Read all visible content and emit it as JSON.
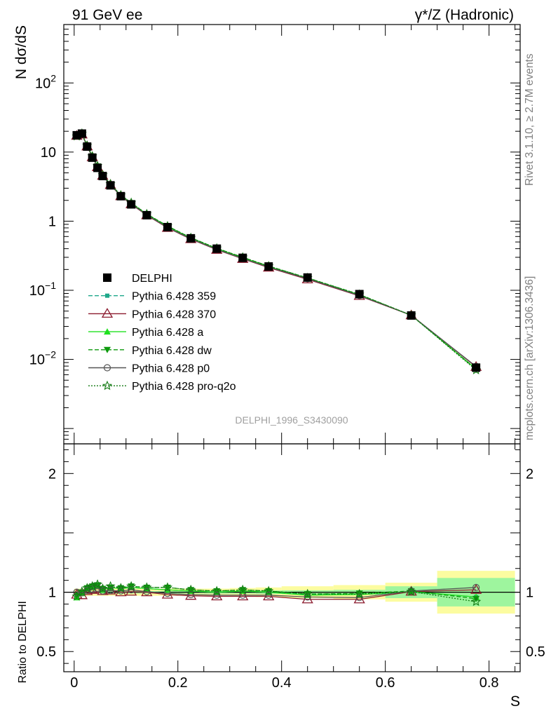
{
  "header": {
    "left_title": "91 GeV ee",
    "right_title": "γ*/Z (Hadronic)"
  },
  "side_text": {
    "rivet": "Rivet 3.1.10, ≥ 2.7M events",
    "mcplots": "mcplots.cern.ch [arXiv:1306.3436]"
  },
  "analysis_label": "DELPHI_1996_S3430090",
  "colors": {
    "data": "#000000",
    "p359": "#1fa88a",
    "p370": "#8b1a2e",
    "pa": "#1fe01f",
    "pdw": "#0d9a0d",
    "pp0": "#555555",
    "pproq2o": "#137a13",
    "band_stat": "#9ef59e",
    "band_syst": "#fcfca0"
  },
  "chart_data": [
    {
      "type": "line",
      "panel": "main",
      "ylabel": "N dσ/dS",
      "yscale": "log",
      "xlim": [
        -0.02,
        0.86
      ],
      "ylim": [
        0.0006,
        700
      ],
      "y_ticks": [
        {
          "value": 0.01,
          "label": "10",
          "exp": "−2"
        },
        {
          "value": 0.1,
          "label": "10",
          "exp": "−1"
        },
        {
          "value": 1,
          "label": "1",
          "exp": ""
        },
        {
          "value": 10,
          "label": "10",
          "exp": ""
        },
        {
          "value": 100,
          "label": "10",
          "exp": "2"
        }
      ],
      "x": [
        0.005,
        0.015,
        0.025,
        0.035,
        0.045,
        0.055,
        0.07,
        0.09,
        0.11,
        0.14,
        0.18,
        0.225,
        0.275,
        0.325,
        0.375,
        0.45,
        0.55,
        0.65,
        0.775
      ],
      "legend_position": "left-center",
      "series": [
        {
          "key": "data",
          "name": "DELPHI",
          "marker": "square",
          "line": "none",
          "values": [
            17.5,
            18.5,
            12.0,
            8.3,
            5.9,
            4.5,
            3.3,
            2.3,
            1.75,
            1.22,
            0.82,
            0.565,
            0.4,
            0.295,
            0.221,
            0.153,
            0.088,
            0.0432,
            0.0076
          ]
        },
        {
          "key": "p359",
          "name": "Pythia 6.428 359",
          "marker": "smallsquare",
          "line": "dashed",
          "values": [
            17.0,
            18.4,
            12.3,
            8.6,
            6.2,
            4.6,
            3.4,
            2.36,
            1.82,
            1.26,
            0.84,
            0.57,
            0.4,
            0.297,
            0.222,
            0.15,
            0.086,
            0.0434,
            0.0073
          ]
        },
        {
          "key": "p370",
          "name": "Pythia 6.428 370",
          "marker": "triangle-open",
          "line": "solid",
          "values": [
            17.2,
            18.0,
            12.1,
            8.45,
            6.05,
            4.55,
            3.35,
            2.3,
            1.76,
            1.22,
            0.8,
            0.55,
            0.386,
            0.285,
            0.213,
            0.144,
            0.083,
            0.0435,
            0.0078
          ]
        },
        {
          "key": "pa",
          "name": "Pythia 6.428 a",
          "marker": "triangle",
          "line": "solid",
          "values": [
            16.7,
            18.3,
            12.3,
            8.6,
            6.2,
            4.6,
            3.4,
            2.36,
            1.82,
            1.26,
            0.84,
            0.57,
            0.4,
            0.297,
            0.221,
            0.149,
            0.086,
            0.0434,
            0.0073
          ]
        },
        {
          "key": "pdw",
          "name": "Pythia 6.428 dw",
          "marker": "triangle-down",
          "line": "dashed",
          "values": [
            17.0,
            18.5,
            12.4,
            8.7,
            6.25,
            4.65,
            3.42,
            2.38,
            1.84,
            1.27,
            0.85,
            0.575,
            0.405,
            0.3,
            0.224,
            0.151,
            0.087,
            0.0436,
            0.0072
          ]
        },
        {
          "key": "pp0",
          "name": "Pythia 6.428 p0",
          "marker": "circle-open",
          "line": "solid",
          "values": [
            17.5,
            18.4,
            12.2,
            8.5,
            6.1,
            4.55,
            3.35,
            2.32,
            1.78,
            1.23,
            0.81,
            0.555,
            0.39,
            0.288,
            0.216,
            0.147,
            0.084,
            0.0436,
            0.0079
          ]
        },
        {
          "key": "pproq2o",
          "name": "Pythia 6.428 pro-q2o",
          "marker": "star-open",
          "line": "dotted",
          "values": [
            16.9,
            18.6,
            12.4,
            8.7,
            6.3,
            4.65,
            3.45,
            2.38,
            1.85,
            1.27,
            0.85,
            0.575,
            0.405,
            0.3,
            0.224,
            0.151,
            0.087,
            0.0435,
            0.007
          ]
        }
      ]
    },
    {
      "type": "line",
      "panel": "ratio",
      "ylabel": "Ratio to DELPHI",
      "xlabel": "S",
      "xlim": [
        -0.02,
        0.86
      ],
      "ylim": [
        0.33,
        2.25
      ],
      "y_ticks": [
        {
          "value": 0.5,
          "label": "0.5"
        },
        {
          "value": 1,
          "label": "1"
        },
        {
          "value": 2,
          "label": "2"
        }
      ],
      "x_ticks": [
        {
          "value": 0,
          "label": "0"
        },
        {
          "value": 0.2,
          "label": "0.2"
        },
        {
          "value": 0.4,
          "label": "0.4"
        },
        {
          "value": 0.6,
          "label": "0.6"
        },
        {
          "value": 0.8,
          "label": "0.8"
        }
      ],
      "bands": {
        "edges": [
          0.0,
          0.01,
          0.02,
          0.03,
          0.04,
          0.05,
          0.06,
          0.08,
          0.1,
          0.12,
          0.16,
          0.2,
          0.25,
          0.3,
          0.35,
          0.4,
          0.5,
          0.6,
          0.7,
          0.85
        ],
        "stat": [
          0.01,
          0.01,
          0.01,
          0.01,
          0.01,
          0.01,
          0.01,
          0.01,
          0.01,
          0.01,
          0.01,
          0.01,
          0.012,
          0.012,
          0.014,
          0.016,
          0.02,
          0.05,
          0.12
        ],
        "syst": [
          0.03,
          0.03,
          0.03,
          0.03,
          0.03,
          0.03,
          0.03,
          0.03,
          0.03,
          0.03,
          0.03,
          0.03,
          0.03,
          0.035,
          0.04,
          0.05,
          0.06,
          0.08,
          0.18
        ]
      },
      "x": [
        0.005,
        0.015,
        0.025,
        0.035,
        0.045,
        0.055,
        0.07,
        0.09,
        0.11,
        0.14,
        0.18,
        0.225,
        0.275,
        0.325,
        0.375,
        0.45,
        0.55,
        0.65,
        0.775
      ],
      "series": [
        {
          "key": "p359",
          "marker": "smallsquare",
          "line": "dashed",
          "values": [
            0.97,
            1.0,
            1.03,
            1.04,
            1.05,
            1.02,
            1.04,
            1.03,
            1.04,
            1.03,
            1.02,
            1.01,
            1.0,
            1.01,
            1.0,
            0.98,
            0.98,
            1.0,
            0.96
          ]
        },
        {
          "key": "p370",
          "marker": "triangle-open",
          "line": "solid",
          "values": [
            0.98,
            0.975,
            1.01,
            1.02,
            1.03,
            1.01,
            1.015,
            1.0,
            1.005,
            1.0,
            0.98,
            0.97,
            0.965,
            0.965,
            0.965,
            0.94,
            0.94,
            1.005,
            1.02
          ]
        },
        {
          "key": "pa",
          "marker": "triangle",
          "line": "solid",
          "values": [
            0.955,
            0.99,
            1.03,
            1.04,
            1.05,
            1.02,
            1.04,
            1.03,
            1.04,
            1.03,
            1.02,
            1.01,
            1.0,
            1.01,
            1.0,
            0.975,
            0.98,
            1.005,
            0.96
          ]
        },
        {
          "key": "pdw",
          "marker": "triangle-down",
          "line": "dashed",
          "values": [
            0.97,
            1.0,
            1.035,
            1.05,
            1.06,
            1.03,
            1.04,
            1.035,
            1.05,
            1.04,
            1.04,
            1.02,
            1.01,
            1.02,
            1.01,
            0.985,
            0.99,
            1.01,
            0.945
          ]
        },
        {
          "key": "pp0",
          "marker": "circle-open",
          "line": "solid",
          "values": [
            1.0,
            0.995,
            1.015,
            1.025,
            1.035,
            1.01,
            1.015,
            1.01,
            1.02,
            1.005,
            0.99,
            0.98,
            0.975,
            0.975,
            0.975,
            0.96,
            0.955,
            1.01,
            1.04
          ]
        },
        {
          "key": "pproq2o",
          "marker": "star-open",
          "line": "dotted",
          "values": [
            0.965,
            1.005,
            1.035,
            1.05,
            1.065,
            1.03,
            1.05,
            1.035,
            1.05,
            1.04,
            1.04,
            1.02,
            1.01,
            1.02,
            1.01,
            0.985,
            0.985,
            1.005,
            0.92
          ]
        }
      ]
    }
  ]
}
